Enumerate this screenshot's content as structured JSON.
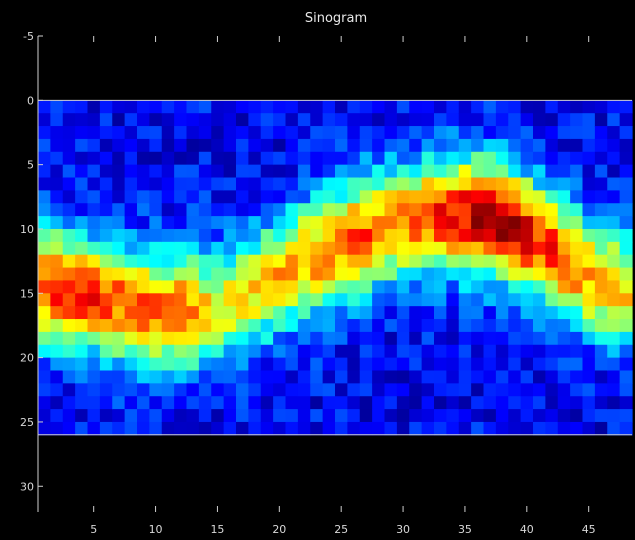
{
  "chart_data": {
    "type": "heatmap",
    "title": "Sinogram",
    "xlabel": "",
    "ylabel": "",
    "xlim": [
      1,
      48
    ],
    "ylim": [
      -5,
      32
    ],
    "x_ticks": [
      5,
      10,
      15,
      20,
      25,
      30,
      35,
      40,
      45
    ],
    "y_ticks": [
      -5,
      0,
      5,
      10,
      15,
      20,
      25,
      30
    ],
    "data_rows": [
      0,
      26
    ],
    "n_cols": 48,
    "n_rows": 26,
    "colormap": "jet",
    "background": "#000000",
    "profile": {
      "description_cols": "center row of the bright band for each column",
      "centers": [
        14.5,
        14.6,
        14.8,
        15.0,
        15.2,
        15.4,
        15.6,
        15.9,
        16.1,
        16.3,
        16.4,
        16.4,
        16.4,
        16.2,
        16.0,
        15.6,
        15.1,
        14.6,
        14.1,
        13.5,
        13.0,
        12.5,
        12.0,
        11.6,
        11.2,
        10.8,
        10.4,
        10.1,
        9.8,
        9.5,
        9.3,
        9.1,
        9.0,
        8.9,
        8.9,
        9.0,
        9.2,
        9.5,
        9.9,
        10.4,
        11.0,
        11.6,
        12.3,
        13.0,
        13.6,
        14.1,
        14.5,
        14.8
      ],
      "peaks": [
        0.78,
        0.82,
        0.85,
        0.82,
        0.8,
        0.78,
        0.76,
        0.75,
        0.74,
        0.74,
        0.74,
        0.74,
        0.7,
        0.62,
        0.58,
        0.56,
        0.58,
        0.6,
        0.62,
        0.64,
        0.66,
        0.68,
        0.7,
        0.72,
        0.74,
        0.76,
        0.76,
        0.74,
        0.72,
        0.74,
        0.76,
        0.78,
        0.82,
        0.86,
        0.9,
        0.94,
        0.98,
        1.0,
        0.96,
        0.9,
        0.84,
        0.8,
        0.76,
        0.72,
        0.7,
        0.68,
        0.66,
        0.64
      ],
      "width": 4.6
    }
  },
  "colors": {
    "axis": "#cfcfcf",
    "frame": "#ffffff"
  }
}
